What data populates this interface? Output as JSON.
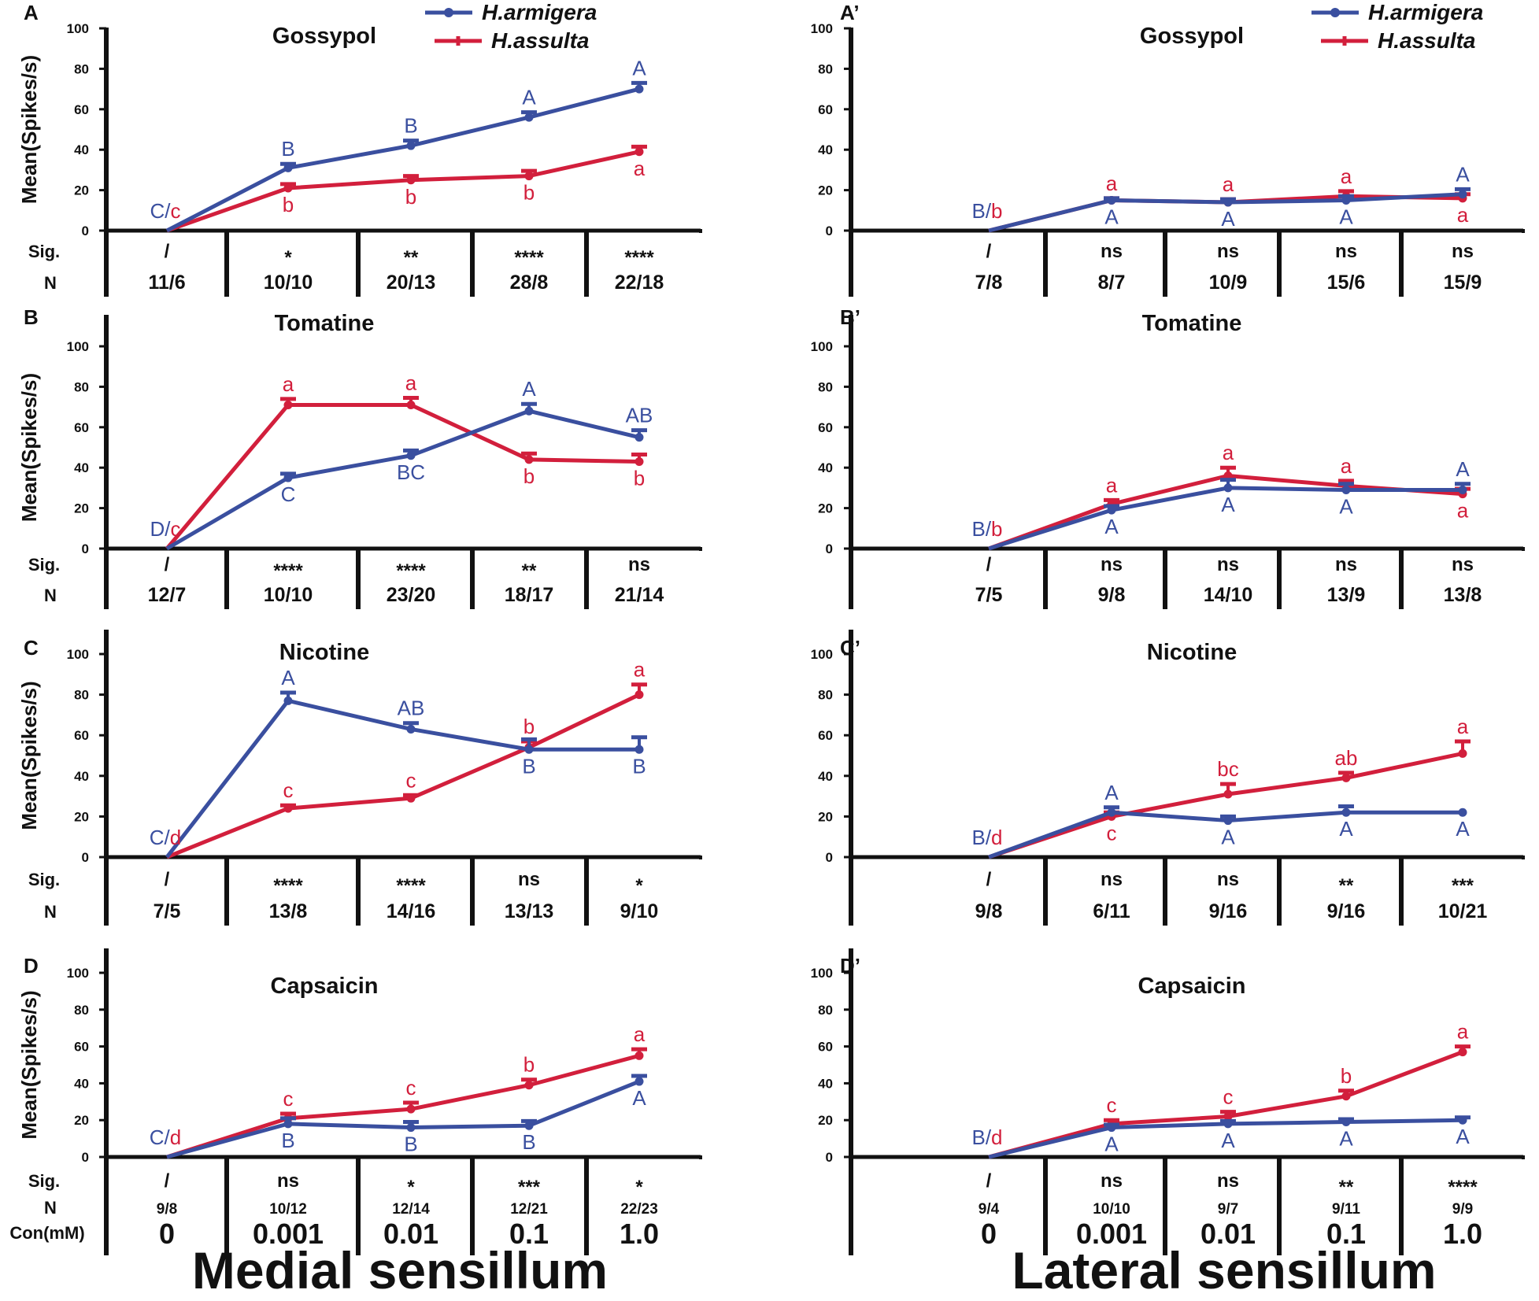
{
  "colors": {
    "armigera": "#3a4f9f",
    "assulta": "#d21f3c",
    "axis": "#111111"
  },
  "columns": {
    "left_title": "Medial sensillum",
    "right_title": "Lateral sensillum"
  },
  "legend": {
    "armigera": "H.armigera",
    "assulta": "H.assulta"
  },
  "row_labels": {
    "sig": "Sig.",
    "n": "N",
    "con": "Con(mM)"
  },
  "concentrations": [
    "0",
    "0.001",
    "0.01",
    "0.1",
    "1.0"
  ],
  "chart_data": [
    {
      "panel": "A",
      "title": "Gossypol",
      "type": "line",
      "ylabel": "Mean(Spikes/s)",
      "ylim": [
        0,
        100
      ],
      "yticks": [
        "0",
        "20",
        "40",
        "60",
        "80",
        "100"
      ],
      "categories": [
        "0",
        "0.001",
        "0.01",
        "0.1",
        "1.0"
      ],
      "series": [
        {
          "name": "H.armigera",
          "values": [
            0,
            31,
            42,
            56,
            70
          ],
          "errors": [
            0,
            2,
            2.5,
            2.5,
            3
          ],
          "letters": [
            "",
            "B",
            "B",
            "A",
            "A"
          ],
          "letter_pos": [
            "",
            "above",
            "above",
            "above",
            "above"
          ]
        },
        {
          "name": "H.assulta",
          "values": [
            0,
            21,
            25,
            27,
            39
          ],
          "errors": [
            0,
            2,
            2,
            2.5,
            2.5
          ],
          "letters": [
            "",
            "b",
            "b",
            "b",
            "a"
          ],
          "letter_pos": [
            "",
            "below",
            "below",
            "below",
            "below"
          ]
        }
      ],
      "zero_label": {
        "upper": "C",
        "lower": "c"
      },
      "sig": [
        "/",
        "*",
        "**",
        "****",
        "****"
      ],
      "n": [
        "11/6",
        "10/10",
        "20/13",
        "28/8",
        "22/18"
      ]
    },
    {
      "panel": "B",
      "title": "Tomatine",
      "type": "line",
      "ylabel": "Mean(Spikes/s)",
      "ylim": [
        0,
        100
      ],
      "yticks": [
        "0",
        "20",
        "40",
        "60",
        "80",
        "100"
      ],
      "categories": [
        "0",
        "0.001",
        "0.01",
        "0.1",
        "1.0"
      ],
      "series": [
        {
          "name": "H.armigera",
          "values": [
            0,
            35,
            46,
            68,
            55
          ],
          "errors": [
            0,
            2,
            2.5,
            3.5,
            3.5
          ],
          "letters": [
            "",
            "C",
            "BC",
            "A",
            "AB"
          ],
          "letter_pos": [
            "",
            "below",
            "below",
            "above",
            "above"
          ]
        },
        {
          "name": "H.assulta",
          "values": [
            0,
            71,
            71,
            44,
            43
          ],
          "errors": [
            0,
            3,
            3.5,
            3,
            3.5
          ],
          "letters": [
            "",
            "a",
            "a",
            "b",
            "b"
          ],
          "letter_pos": [
            "",
            "above",
            "above",
            "below",
            "below"
          ]
        }
      ],
      "zero_label": {
        "upper": "D",
        "lower": "c"
      },
      "sig": [
        "/",
        "****",
        "****",
        "**",
        "ns"
      ],
      "n": [
        "12/7",
        "10/10",
        "23/20",
        "18/17",
        "21/14"
      ]
    },
    {
      "panel": "C",
      "title": "Nicotine",
      "type": "line",
      "ylabel": "Mean(Spikes/s)",
      "ylim": [
        0,
        100
      ],
      "yticks": [
        "0",
        "20",
        "40",
        "60",
        "80",
        "100"
      ],
      "categories": [
        "0",
        "0.001",
        "0.01",
        "0.1",
        "1.0"
      ],
      "series": [
        {
          "name": "H.armigera",
          "values": [
            0,
            77,
            63,
            53,
            53
          ],
          "errors": [
            0,
            4,
            3,
            5,
            6
          ],
          "letters": [
            "",
            "A",
            "AB",
            "B",
            "B"
          ],
          "letter_pos": [
            "",
            "above",
            "above",
            "below",
            "below"
          ]
        },
        {
          "name": "H.assulta",
          "values": [
            0,
            24,
            29,
            54,
            80
          ],
          "errors": [
            0,
            1.5,
            1.5,
            3,
            5
          ],
          "letters": [
            "",
            "c",
            "c",
            "b",
            "a"
          ],
          "letter_pos": [
            "",
            "above",
            "above",
            "above",
            "above"
          ]
        }
      ],
      "zero_label": {
        "upper": "C",
        "lower": "d"
      },
      "sig": [
        "/",
        "****",
        "****",
        "ns",
        "*"
      ],
      "n": [
        "7/5",
        "13/8",
        "14/16",
        "13/13",
        "9/10"
      ]
    },
    {
      "panel": "D",
      "title": "Capsaicin",
      "type": "line",
      "ylabel": "Mean(Spikes/s)",
      "ylim": [
        0,
        100
      ],
      "yticks": [
        "0",
        "20",
        "40",
        "60",
        "80",
        "100"
      ],
      "categories": [
        "0",
        "0.001",
        "0.01",
        "0.1",
        "1.0"
      ],
      "series": [
        {
          "name": "H.armigera",
          "values": [
            0,
            18,
            16,
            17,
            41
          ],
          "errors": [
            0,
            3,
            3,
            2.5,
            3
          ],
          "letters": [
            "",
            "B",
            "B",
            "B",
            "A"
          ],
          "letter_pos": [
            "",
            "below",
            "below",
            "below",
            "below"
          ]
        },
        {
          "name": "H.assulta",
          "values": [
            0,
            21,
            26,
            39,
            55
          ],
          "errors": [
            0,
            2.5,
            3.5,
            3,
            3.5
          ],
          "letters": [
            "",
            "c",
            "c",
            "b",
            "a"
          ],
          "letter_pos": [
            "",
            "above",
            "above",
            "above",
            "above"
          ]
        }
      ],
      "zero_label": {
        "upper": "C",
        "lower": "d"
      },
      "sig": [
        "/",
        "ns",
        "*",
        "***",
        "*"
      ],
      "n": [
        "9/8",
        "10/12",
        "12/14",
        "12/21",
        "22/23"
      ]
    },
    {
      "panel": "A’",
      "title": "Gossypol",
      "type": "line",
      "ylabel": "",
      "ylim": [
        0,
        100
      ],
      "yticks": [
        "0",
        "20",
        "40",
        "60",
        "80",
        "100"
      ],
      "categories": [
        "0",
        "0.001",
        "0.01",
        "0.1",
        "1.0"
      ],
      "series": [
        {
          "name": "H.armigera",
          "values": [
            0,
            15,
            14,
            15,
            18
          ],
          "errors": [
            0,
            1,
            1.5,
            2,
            2.5
          ],
          "letters": [
            "",
            "A",
            "A",
            "A",
            "A"
          ],
          "letter_pos": [
            "",
            "below",
            "below",
            "below",
            "above"
          ]
        },
        {
          "name": "H.assulta",
          "values": [
            0,
            15,
            14,
            17,
            16
          ],
          "errors": [
            0,
            1,
            1.5,
            2.5,
            2
          ],
          "letters": [
            "",
            "a",
            "a",
            "a",
            "a"
          ],
          "letter_pos": [
            "",
            "above",
            "above",
            "above",
            "below"
          ]
        }
      ],
      "zero_label": {
        "upper": "B",
        "lower": "b"
      },
      "sig": [
        "/",
        "ns",
        "ns",
        "ns",
        "ns"
      ],
      "n": [
        "7/8",
        "8/7",
        "10/9",
        "15/6",
        "15/9"
      ]
    },
    {
      "panel": "B’",
      "title": "Tomatine",
      "type": "line",
      "ylabel": "",
      "ylim": [
        0,
        100
      ],
      "yticks": [
        "0",
        "20",
        "40",
        "60",
        "80",
        "100"
      ],
      "categories": [
        "0",
        "0.001",
        "0.01",
        "0.1",
        "1.0"
      ],
      "series": [
        {
          "name": "H.armigera",
          "values": [
            0,
            19,
            30,
            29,
            29
          ],
          "errors": [
            0,
            2,
            4,
            3,
            3
          ],
          "letters": [
            "",
            "A",
            "A",
            "A",
            "A"
          ],
          "letter_pos": [
            "",
            "below",
            "below",
            "below",
            "above"
          ]
        },
        {
          "name": "H.assulta",
          "values": [
            0,
            22,
            36,
            31,
            27
          ],
          "errors": [
            0,
            2,
            4,
            2.5,
            2.5
          ],
          "letters": [
            "",
            "a",
            "a",
            "a",
            "a"
          ],
          "letter_pos": [
            "",
            "above",
            "above",
            "above",
            "below"
          ]
        }
      ],
      "zero_label": {
        "upper": "B",
        "lower": "b"
      },
      "sig": [
        "/",
        "ns",
        "ns",
        "ns",
        "ns"
      ],
      "n": [
        "7/5",
        "9/8",
        "14/10",
        "13/9",
        "13/8"
      ]
    },
    {
      "panel": "C’",
      "title": "Nicotine",
      "type": "line",
      "ylabel": "",
      "ylim": [
        0,
        100
      ],
      "yticks": [
        "0",
        "20",
        "40",
        "60",
        "80",
        "100"
      ],
      "categories": [
        "0",
        "0.001",
        "0.01",
        "0.1",
        "1.0"
      ],
      "series": [
        {
          "name": "H.armigera",
          "values": [
            0,
            22,
            18,
            22,
            22
          ],
          "errors": [
            0,
            2.5,
            2,
            3,
            0
          ],
          "letters": [
            "",
            "A",
            "A",
            "A",
            "A"
          ],
          "letter_pos": [
            "",
            "above",
            "below",
            "below",
            "below"
          ]
        },
        {
          "name": "H.assulta",
          "values": [
            0,
            20,
            31,
            39,
            51
          ],
          "errors": [
            0,
            2,
            5,
            2.5,
            6
          ],
          "letters": [
            "",
            "c",
            "bc",
            "ab",
            "a"
          ],
          "letter_pos": [
            "",
            "below",
            "above",
            "above",
            "above"
          ]
        }
      ],
      "zero_label": {
        "upper": "B",
        "lower": "d"
      },
      "sig": [
        "/",
        "ns",
        "ns",
        "**",
        "***"
      ],
      "n": [
        "9/8",
        "6/11",
        "9/16",
        "9/16",
        "10/21"
      ]
    },
    {
      "panel": "D’",
      "title": "Capsaicin",
      "type": "line",
      "ylabel": "",
      "ylim": [
        0,
        100
      ],
      "yticks": [
        "0",
        "20",
        "40",
        "60",
        "80",
        "100"
      ],
      "categories": [
        "0",
        "0.001",
        "0.01",
        "0.1",
        "1.0"
      ],
      "series": [
        {
          "name": "H.armigera",
          "values": [
            0,
            16,
            18,
            19,
            20
          ],
          "errors": [
            0,
            1.5,
            1.5,
            1.5,
            1.5
          ],
          "letters": [
            "",
            "A",
            "A",
            "A",
            "A"
          ],
          "letter_pos": [
            "",
            "below",
            "below",
            "below",
            "below"
          ]
        },
        {
          "name": "H.assulta",
          "values": [
            0,
            18,
            22,
            33,
            57
          ],
          "errors": [
            0,
            2,
            2.5,
            3,
            3
          ],
          "letters": [
            "",
            "c",
            "c",
            "b",
            "a"
          ],
          "letter_pos": [
            "",
            "above",
            "above",
            "above",
            "above"
          ]
        }
      ],
      "zero_label": {
        "upper": "B",
        "lower": "d"
      },
      "sig": [
        "/",
        "ns",
        "ns",
        "**",
        "****"
      ],
      "n": [
        "9/4",
        "10/10",
        "9/7",
        "9/11",
        "9/9"
      ]
    }
  ]
}
